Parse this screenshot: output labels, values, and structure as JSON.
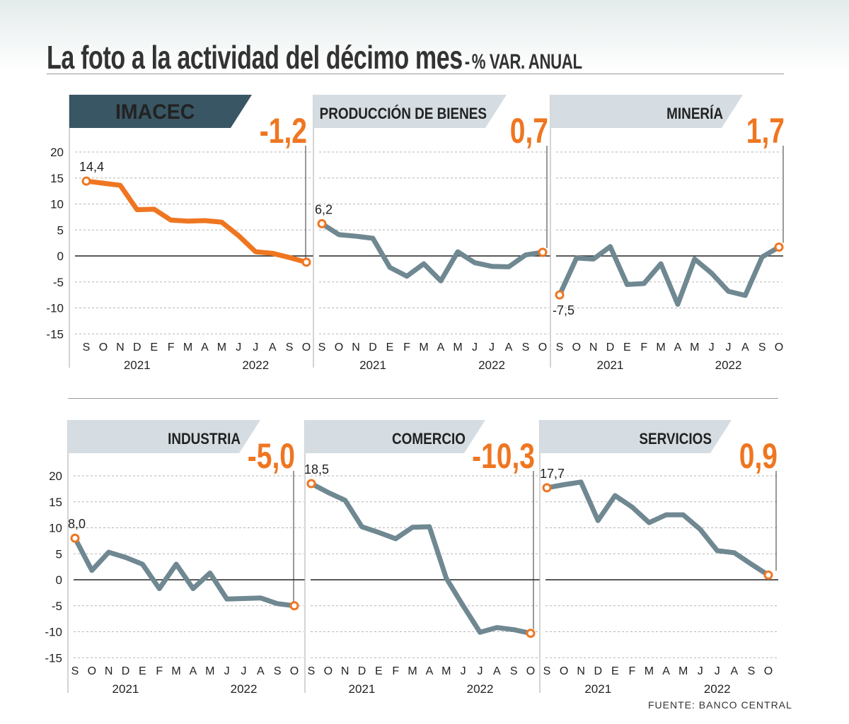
{
  "title": "La foto a la actividad del décimo mes",
  "subtitle": "% VAR. ANUAL",
  "dash": "-",
  "source": "FUENTE: BANCO CENTRAL",
  "colors": {
    "highlight": "#ef7621",
    "series": "#6f8891",
    "dark_tab": "#395664",
    "light_tab": "#d5dde2"
  },
  "chart_data": [
    {
      "type": "line",
      "panel": "IMACEC",
      "headline": "-1,2",
      "x": [
        "S",
        "O",
        "N",
        "D",
        "E",
        "F",
        "M",
        "A",
        "M",
        "J",
        "J",
        "A",
        "S",
        "O"
      ],
      "years": [
        "2021",
        "2022"
      ],
      "ylim": [
        -15,
        20
      ],
      "yticks": [
        "20",
        "15",
        "10",
        "5",
        "0",
        "-5",
        "-10",
        "-15"
      ],
      "values": [
        14.4,
        14.0,
        13.6,
        8.9,
        9.0,
        6.9,
        6.7,
        6.8,
        6.5,
        3.9,
        0.8,
        0.5,
        -0.3,
        -1.2
      ],
      "first_label": "14,4",
      "highlight": true
    },
    {
      "type": "line",
      "panel": "PRODUCCIÓN DE BIENES",
      "headline": "0,7",
      "x": [
        "S",
        "O",
        "N",
        "D",
        "E",
        "F",
        "M",
        "A",
        "M",
        "J",
        "J",
        "A",
        "S",
        "O"
      ],
      "years": [
        "2021",
        "2022"
      ],
      "ylim": [
        -15,
        20
      ],
      "values": [
        6.2,
        4.1,
        3.8,
        3.4,
        -2.2,
        -3.9,
        -1.5,
        -4.8,
        0.8,
        -1.3,
        -2.0,
        -2.1,
        0.2,
        0.7
      ],
      "first_label": "6,2",
      "highlight": false
    },
    {
      "type": "line",
      "panel": "MINERÍA",
      "headline": "1,7",
      "x": [
        "S",
        "O",
        "N",
        "D",
        "E",
        "F",
        "M",
        "A",
        "M",
        "J",
        "J",
        "A",
        "S",
        "O"
      ],
      "years": [
        "2021",
        "2022"
      ],
      "ylim": [
        -15,
        20
      ],
      "values": [
        -7.5,
        -0.4,
        -0.6,
        1.8,
        -5.5,
        -5.3,
        -1.5,
        -9.3,
        -0.6,
        -3.3,
        -6.8,
        -7.6,
        -0.2,
        1.7
      ],
      "first_label": "-7,5",
      "highlight": false
    },
    {
      "type": "line",
      "panel": "INDUSTRIA",
      "headline": "-5,0",
      "x": [
        "S",
        "O",
        "N",
        "D",
        "E",
        "F",
        "M",
        "A",
        "M",
        "J",
        "J",
        "A",
        "S",
        "O"
      ],
      "years": [
        "2021",
        "2022"
      ],
      "ylim": [
        -15,
        20
      ],
      "yticks": [
        "20",
        "15",
        "10",
        "5",
        "0",
        "-5",
        "-10",
        "-15"
      ],
      "values": [
        8.0,
        1.8,
        5.3,
        4.3,
        3.0,
        -1.7,
        3.0,
        -1.7,
        1.3,
        -3.7,
        -3.6,
        -3.5,
        -4.6,
        -5.0
      ],
      "first_label": "8,0",
      "highlight": false
    },
    {
      "type": "line",
      "panel": "COMERCIO",
      "headline": "-10,3",
      "x": [
        "S",
        "O",
        "N",
        "D",
        "E",
        "F",
        "M",
        "A",
        "M",
        "J",
        "J",
        "A",
        "S",
        "O"
      ],
      "years": [
        "2021",
        "2022"
      ],
      "ylim": [
        -15,
        20
      ],
      "values": [
        18.5,
        16.8,
        15.3,
        10.2,
        9.1,
        7.9,
        10.1,
        10.2,
        0.3,
        -5.0,
        -10.1,
        -9.2,
        -9.6,
        -10.3
      ],
      "first_label": "18,5",
      "highlight": false
    },
    {
      "type": "line",
      "panel": "SERVICIOS",
      "headline": "0,9",
      "x": [
        "S",
        "O",
        "N",
        "D",
        "E",
        "F",
        "M",
        "A",
        "M",
        "J",
        "J",
        "A",
        "S",
        "O"
      ],
      "years": [
        "2021",
        "2022"
      ],
      "ylim": [
        -15,
        20
      ],
      "values": [
        17.7,
        18.3,
        18.8,
        11.4,
        16.2,
        14.0,
        11.0,
        12.5,
        12.5,
        9.7,
        5.6,
        5.2,
        3.0,
        0.9
      ],
      "first_label": "17,7",
      "highlight": false
    }
  ]
}
